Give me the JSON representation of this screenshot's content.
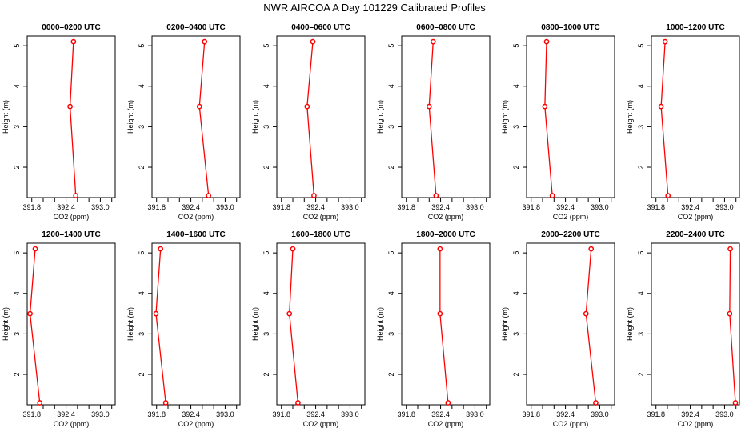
{
  "chart_data": {
    "title": "NWR AIRCOA A  Day 101229  Calibrated Profiles",
    "type": "line",
    "grid": false,
    "xlabel": "CO2 (ppm)",
    "ylabel": "Height (m)",
    "xlim": [
      391.72,
      393.26
    ],
    "ylim": [
      1.25,
      5.24
    ],
    "xticks": [
      391.8,
      392.0,
      392.2,
      392.4,
      392.6,
      392.8,
      393.0,
      393.2
    ],
    "xtick_labels": [
      "391.8",
      "392.4",
      "393.0"
    ],
    "yticks": [
      "2",
      "3",
      "4",
      "5"
    ],
    "line_color": "#ff0000",
    "marker": "open-circle",
    "panels": [
      {
        "title": "0000–0200 UTC",
        "heights": [
          5.1,
          3.5,
          1.3
        ],
        "co2": [
          392.53,
          392.47,
          392.57
        ]
      },
      {
        "title": "0200–0400 UTC",
        "heights": [
          5.1,
          3.5,
          1.3
        ],
        "co2": [
          392.64,
          392.55,
          392.71
        ]
      },
      {
        "title": "0400–0600 UTC",
        "heights": [
          5.1,
          3.5,
          1.3
        ],
        "co2": [
          392.35,
          392.25,
          392.37
        ]
      },
      {
        "title": "0600–0800 UTC",
        "heights": [
          5.1,
          3.5,
          1.3
        ],
        "co2": [
          392.27,
          392.2,
          392.32
        ]
      },
      {
        "title": "0800–1000 UTC",
        "heights": [
          5.1,
          3.5,
          1.3
        ],
        "co2": [
          392.07,
          392.04,
          392.17
        ]
      },
      {
        "title": "1000–1200 UTC",
        "heights": [
          5.1,
          3.5,
          1.3
        ],
        "co2": [
          391.96,
          391.89,
          392.01
        ]
      },
      {
        "title": "1200–1400 UTC",
        "heights": [
          5.1,
          3.5,
          1.3
        ],
        "co2": [
          391.86,
          391.77,
          391.94
        ]
      },
      {
        "title": "1400–1600 UTC",
        "heights": [
          5.1,
          3.5,
          1.3
        ],
        "co2": [
          391.87,
          391.79,
          391.96
        ]
      },
      {
        "title": "1600–1800 UTC",
        "heights": [
          5.1,
          3.5,
          1.3
        ],
        "co2": [
          392.0,
          391.94,
          392.09
        ]
      },
      {
        "title": "1800–2000 UTC",
        "heights": [
          5.1,
          3.5,
          1.3
        ],
        "co2": [
          392.39,
          392.39,
          392.53
        ]
      },
      {
        "title": "2000–2200 UTC",
        "heights": [
          5.1,
          3.5,
          1.3
        ],
        "co2": [
          392.85,
          392.76,
          392.93
        ]
      },
      {
        "title": "2200–2400 UTC",
        "heights": [
          5.1,
          3.5,
          1.3
        ],
        "co2": [
          393.1,
          393.09,
          393.19
        ]
      }
    ]
  }
}
